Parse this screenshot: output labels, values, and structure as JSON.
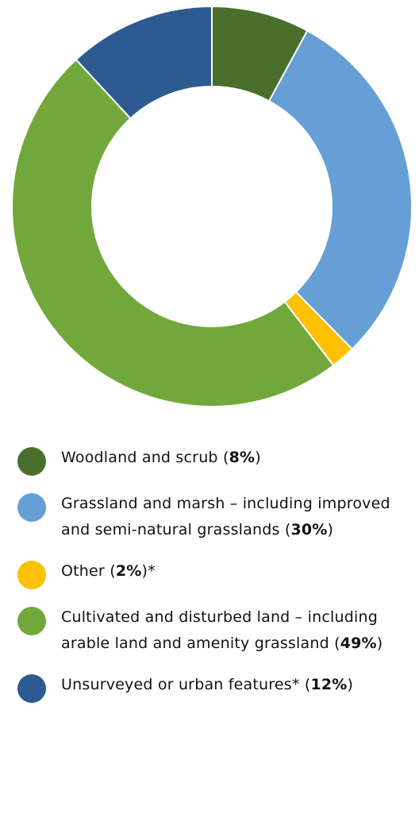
{
  "chart_data": {
    "type": "pie",
    "donut": true,
    "categories": [
      "Woodland and scrub",
      "Grassland and marsh – including improved and semi-natural grasslands",
      "Other",
      "Cultivated and disturbed land – including arable land and amenity grassland",
      "Unsurveyed or urban features"
    ],
    "values": [
      8,
      30,
      2,
      49,
      12
    ],
    "unit": "%",
    "colors": [
      "#4a6f2c",
      "#659fd6",
      "#ffc000",
      "#72a83b",
      "#2e5a92"
    ],
    "legend_position": "bottom"
  },
  "legend": [
    {
      "label": "Woodland and scrub",
      "value": "8%",
      "suffix": "",
      "color": "#4a6f2c"
    },
    {
      "label": "Grassland and marsh – including improved and semi-natural grasslands",
      "value": "30%",
      "suffix": "",
      "color": "#659fd6"
    },
    {
      "label": "Other",
      "value": "2%",
      "suffix": "*",
      "color": "#ffc000"
    },
    {
      "label": "Cultivated and disturbed land – including arable land and amenity grassland",
      "value": "49%",
      "suffix": "",
      "color": "#72a83b"
    },
    {
      "label": "Unsurveyed or urban features*",
      "value": "12%",
      "suffix": "",
      "color": "#2e5a92"
    }
  ]
}
